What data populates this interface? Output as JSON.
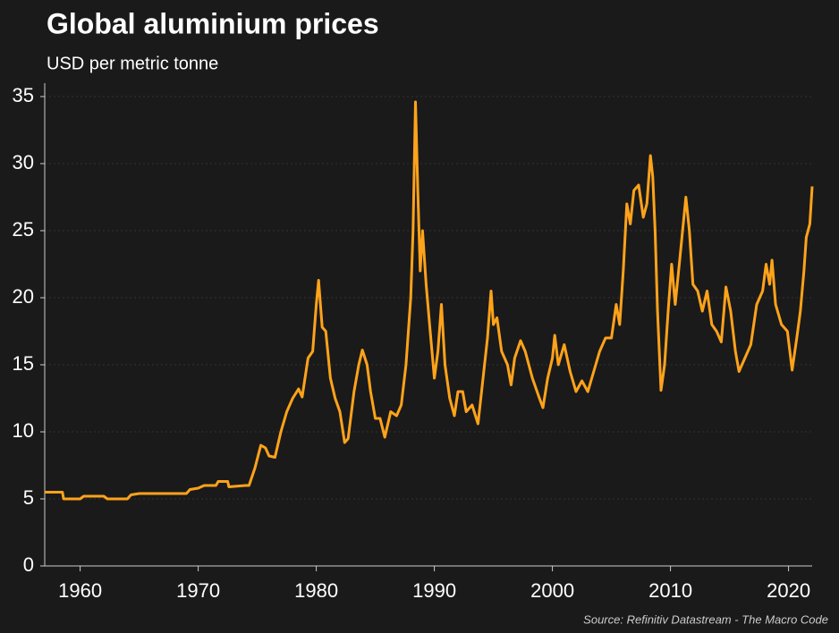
{
  "chart_data": {
    "type": "line",
    "title": "Global aluminium prices",
    "subtitle": "USD per metric tonne",
    "source": "Source: Refinitiv Datastream - The Macro Code",
    "color": "#ffa31a",
    "x": [
      1957,
      1958.5,
      1958.6,
      1960,
      1960.3,
      1962,
      1962.3,
      1964,
      1964.3,
      1965,
      1969,
      1969.3,
      1970,
      1970.5,
      1971.5,
      1971.7,
      1972.5,
      1972.6,
      1974,
      1974.3,
      1974.8,
      1975.3,
      1975.7,
      1976,
      1976.5,
      1977,
      1977.5,
      1978,
      1978.5,
      1978.8,
      1979.3,
      1979.7,
      1980,
      1980.2,
      1980.5,
      1980.8,
      1981.2,
      1981.6,
      1982,
      1982.4,
      1982.7,
      1983.2,
      1983.6,
      1983.9,
      1984.3,
      1984.6,
      1985,
      1985.4,
      1985.8,
      1986.3,
      1986.8,
      1987.2,
      1987.6,
      1988,
      1988.2,
      1988.4,
      1988.6,
      1988.8,
      1989,
      1989.3,
      1989.6,
      1990,
      1990.3,
      1990.6,
      1990.9,
      1991.3,
      1991.7,
      1992,
      1992.4,
      1992.7,
      1993.2,
      1993.7,
      1994,
      1994.5,
      1994.8,
      1995,
      1995.3,
      1995.7,
      1996.2,
      1996.5,
      1996.8,
      1997.3,
      1997.7,
      1998.3,
      1998.9,
      1999.2,
      1999.6,
      2000,
      2000.2,
      2000.5,
      2001,
      2001.5,
      2002,
      2002.5,
      2003,
      2003.5,
      2004,
      2004.5,
      2005,
      2005.4,
      2005.7,
      2006,
      2006.3,
      2006.6,
      2006.9,
      2007.3,
      2007.7,
      2008,
      2008.3,
      2008.5,
      2008.7,
      2008.9,
      2009.2,
      2009.5,
      2009.8,
      2010.1,
      2010.4,
      2010.8,
      2011.3,
      2011.6,
      2011.9,
      2012.3,
      2012.7,
      2013.1,
      2013.5,
      2013.9,
      2014.3,
      2014.7,
      2015.1,
      2015.5,
      2015.8,
      2016.3,
      2016.8,
      2017.3,
      2017.8,
      2018.1,
      2018.4,
      2018.6,
      2018.9,
      2019.4,
      2019.9,
      2020.3,
      2020.7,
      2021,
      2021.3,
      2021.5,
      2021.8,
      2022
    ],
    "values": [
      5.5,
      5.5,
      5.0,
      5.0,
      5.2,
      5.2,
      5.0,
      5.0,
      5.3,
      5.4,
      5.4,
      5.7,
      5.8,
      6.0,
      6.0,
      6.3,
      6.3,
      5.9,
      6.0,
      6.0,
      7.3,
      9.0,
      8.8,
      8.2,
      8.1,
      10,
      11.5,
      12.5,
      13.2,
      12.6,
      15.5,
      16,
      19.5,
      21.3,
      17.8,
      17.5,
      14,
      12.5,
      11.5,
      9.2,
      9.5,
      13,
      15,
      16.1,
      15,
      13,
      11,
      11,
      9.6,
      11.5,
      11.2,
      12,
      15,
      20,
      25,
      34.6,
      28,
      22,
      25,
      21,
      18,
      14,
      16,
      19.5,
      15,
      12.5,
      11.2,
      13,
      13,
      11.5,
      12,
      10.6,
      13,
      17,
      20.5,
      18,
      18.5,
      16,
      15,
      13.5,
      15.5,
      16.8,
      16,
      14,
      12.5,
      11.8,
      14,
      15.5,
      17.2,
      15,
      16.5,
      14.5,
      13,
      13.8,
      13,
      14.5,
      16,
      17,
      17,
      19.5,
      18,
      22,
      27,
      25.5,
      28,
      28.4,
      26,
      27,
      30.6,
      29,
      25,
      19,
      13.1,
      15,
      19,
      22.5,
      19.5,
      23,
      27.5,
      25,
      21,
      20.5,
      19,
      20.5,
      18,
      17.5,
      16.7,
      20.8,
      19,
      16,
      14.5,
      15.5,
      16.5,
      19.5,
      20.5,
      22.5,
      21,
      22.8,
      19.5,
      18,
      17.5,
      14.6,
      17,
      19,
      22,
      24.5,
      25.5,
      28.3
    ],
    "xlim": [
      1957,
      2022
    ],
    "xticks": [
      1960,
      1970,
      1980,
      1990,
      2000,
      2010,
      2020
    ],
    "ylim": [
      0,
      36
    ],
    "yticks": [
      0,
      5,
      10,
      15,
      20,
      25,
      30,
      35
    ],
    "grid": true
  }
}
